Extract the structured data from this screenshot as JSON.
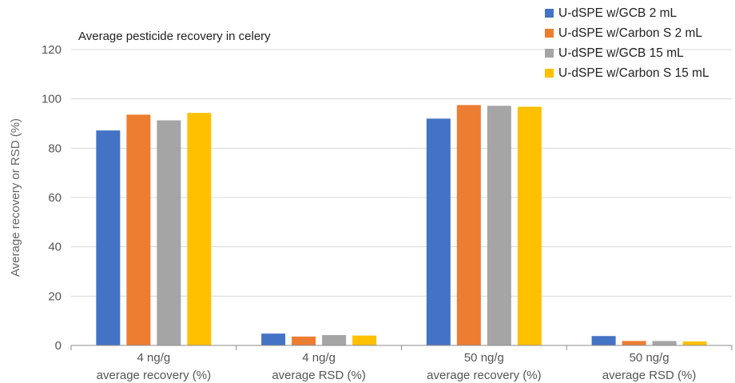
{
  "chart_data": {
    "type": "bar",
    "title": "Average pesticide recovery in celery",
    "ylabel": "Average recovery or RSD (%)",
    "xlabel": "",
    "ylim": [
      0,
      120
    ],
    "yticks": [
      0,
      20,
      40,
      60,
      80,
      100,
      120
    ],
    "grid": true,
    "legend_position": "top-right",
    "categories": [
      [
        "4 ng/g",
        "average recovery (%)"
      ],
      [
        "4 ng/g",
        "average RSD (%)"
      ],
      [
        "50 ng/g",
        "average recovery (%)"
      ],
      [
        "50 ng/g",
        "average RSD (%)"
      ]
    ],
    "series": [
      {
        "name": "U-dSPE w/GCB 2 mL",
        "color": "#4472c4",
        "values": [
          87.2,
          4.8,
          92.0,
          3.8
        ]
      },
      {
        "name": "U-dSPE w/Carbon S 2 mL",
        "color": "#ed7d31",
        "values": [
          93.6,
          3.6,
          97.5,
          1.8
        ]
      },
      {
        "name": "U-dSPE w/GCB 15 mL",
        "color": "#a5a5a5",
        "values": [
          91.3,
          4.2,
          97.2,
          1.8
        ]
      },
      {
        "name": "U-dSPE w/Carbon S 15 mL",
        "color": "#ffc000",
        "values": [
          94.3,
          4.0,
          96.8,
          1.6
        ]
      }
    ]
  }
}
